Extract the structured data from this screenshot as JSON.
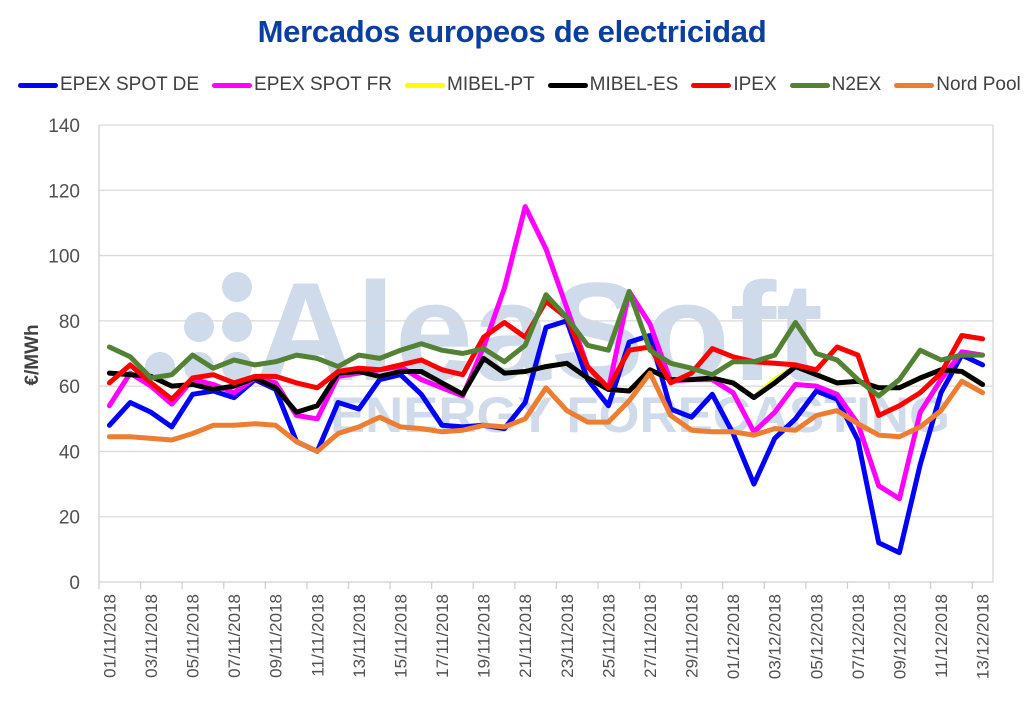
{
  "chart_data": {
    "type": "line",
    "title": "Mercados europeos de electricidad",
    "xlabel": "",
    "ylabel": "€/MWh",
    "ylim": [
      0,
      140
    ],
    "yticks": [
      0,
      20,
      40,
      60,
      80,
      100,
      120,
      140
    ],
    "grid": true,
    "legend_position": "top",
    "watermark": {
      "line1": "AleaSoft",
      "line2": "ENERGY FORECASTING"
    },
    "x": [
      "01/11/2018",
      "02/11/2018",
      "03/11/2018",
      "04/11/2018",
      "05/11/2018",
      "06/11/2018",
      "07/11/2018",
      "08/11/2018",
      "09/11/2018",
      "10/11/2018",
      "11/11/2018",
      "12/11/2018",
      "13/11/2018",
      "14/11/2018",
      "15/11/2018",
      "16/11/2018",
      "17/11/2018",
      "18/11/2018",
      "19/11/2018",
      "20/11/2018",
      "21/11/2018",
      "22/11/2018",
      "23/11/2018",
      "24/11/2018",
      "25/11/2018",
      "26/11/2018",
      "27/11/2018",
      "28/11/2018",
      "29/11/2018",
      "30/11/2018",
      "01/12/2018",
      "02/12/2018",
      "03/12/2018",
      "04/12/2018",
      "05/12/2018",
      "06/12/2018",
      "07/12/2018",
      "08/12/2018",
      "09/12/2018",
      "10/12/2018",
      "11/12/2018",
      "12/12/2018",
      "13/12/2018"
    ],
    "xtick_labels": [
      "01/11/2018",
      "03/11/2018",
      "05/11/2018",
      "07/11/2018",
      "09/11/2018",
      "11/11/2018",
      "13/11/2018",
      "15/11/2018",
      "17/11/2018",
      "19/11/2018",
      "21/11/2018",
      "23/11/2018",
      "25/11/2018",
      "27/11/2018",
      "29/11/2018",
      "01/12/2018",
      "03/12/2018",
      "05/12/2018",
      "07/12/2018",
      "09/12/2018",
      "11/12/2018",
      "13/12/2018"
    ],
    "series": [
      {
        "name": "EPEX SPOT DE",
        "color": "#0000ff",
        "values": [
          48,
          55,
          52,
          47.5,
          57.5,
          58.5,
          56.5,
          62,
          59,
          43,
          40,
          55,
          53,
          62,
          63.5,
          57.5,
          48,
          47.5,
          48,
          47,
          55,
          78,
          80,
          62,
          54,
          73.5,
          75.5,
          53,
          50.5,
          57.5,
          45.5,
          30,
          44,
          50,
          58.5,
          56,
          43.5,
          12,
          9,
          36,
          58,
          69.5,
          66.5
        ]
      },
      {
        "name": "EPEX SPOT FR",
        "color": "#ff00ff",
        "values": [
          54,
          64,
          60,
          54.5,
          62,
          60.5,
          58,
          62.5,
          61,
          51,
          50,
          63,
          64,
          65,
          66,
          62,
          59.5,
          57,
          72,
          90,
          115,
          102,
          84,
          66,
          59,
          89,
          79,
          61.5,
          62,
          62,
          58,
          46,
          52,
          60.5,
          60,
          57.5,
          48.5,
          29.5,
          25.5,
          52,
          62,
          70.5,
          69.5
        ]
      },
      {
        "name": "MIBEL-PT",
        "color": "#ffff00",
        "values": [
          64,
          63.5,
          63,
          60,
          60.5,
          59,
          60,
          62.5,
          59.5,
          52,
          54,
          64,
          64.5,
          63,
          64.5,
          64.5,
          61,
          57.5,
          68.5,
          64,
          64.5,
          66,
          67,
          62.5,
          59,
          58.5,
          65,
          62,
          62,
          62.5,
          61,
          56.5,
          62,
          66,
          63.5,
          61,
          61.5,
          59.5,
          59.5,
          62.5,
          65,
          64.5,
          60.5
        ]
      },
      {
        "name": "MIBEL-ES",
        "color": "#000000",
        "values": [
          64,
          63.5,
          63,
          60,
          60.5,
          59,
          60,
          62.5,
          59.5,
          52,
          54,
          64,
          64.5,
          63,
          64.5,
          64.5,
          61,
          57.5,
          68.5,
          64,
          64.5,
          66,
          67,
          62.5,
          59,
          58.5,
          65,
          62,
          62,
          62.5,
          61,
          56.5,
          61,
          66,
          63.5,
          61,
          61.5,
          59.5,
          59.5,
          62.5,
          65,
          64.5,
          60.5
        ]
      },
      {
        "name": "IPEX",
        "color": "#ff0000",
        "values": [
          61,
          66.5,
          61,
          56,
          62.5,
          63.5,
          61,
          63,
          63,
          61,
          59.5,
          64.5,
          65.5,
          65,
          66.5,
          68,
          65,
          63.5,
          75,
          79.5,
          75,
          86,
          81,
          66,
          59.5,
          71,
          72,
          61,
          64,
          71.5,
          69,
          67.5,
          67,
          66.5,
          65,
          72,
          69.5,
          51,
          54,
          58,
          64,
          75.5,
          74.5
        ]
      },
      {
        "name": "N2EX",
        "color": "#548235",
        "values": [
          72,
          69,
          62.5,
          63.5,
          69.5,
          65.5,
          68,
          66.5,
          67.5,
          69.5,
          68.5,
          66,
          69.5,
          68.5,
          71,
          73,
          71,
          70,
          71.5,
          67.5,
          72.5,
          88,
          81,
          72.5,
          71,
          89,
          71,
          67,
          65.5,
          63.5,
          67.5,
          67.5,
          69.5,
          79.5,
          70,
          68,
          62,
          57,
          62,
          71,
          68,
          69.5,
          69.5
        ]
      },
      {
        "name": "Nord Pool",
        "color": "#ed7d31",
        "values": [
          44.5,
          44.5,
          44,
          43.5,
          45.5,
          48,
          48,
          48.5,
          48,
          43,
          40,
          45.5,
          47.5,
          50.5,
          47.5,
          47,
          46,
          46.5,
          48,
          47.5,
          50,
          59.5,
          52.5,
          49,
          49,
          55.5,
          64,
          51,
          46.5,
          46,
          46,
          45,
          47,
          46.5,
          51,
          52.5,
          48.5,
          45,
          44.5,
          47.5,
          52.5,
          61.5,
          58
        ]
      }
    ]
  }
}
